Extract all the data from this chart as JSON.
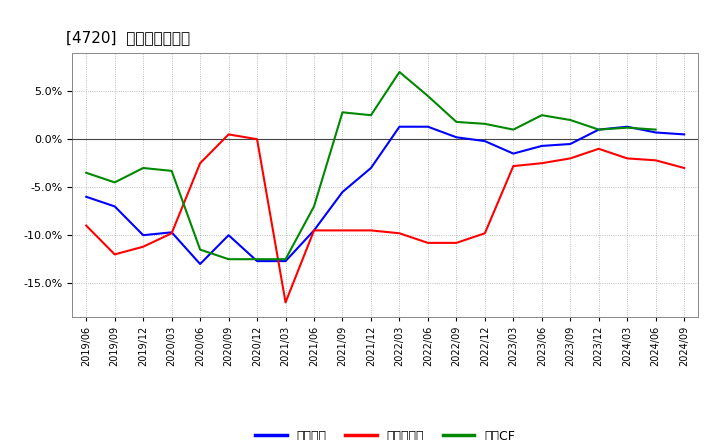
{
  "title": "[4720]  マージンの推移",
  "title_fontsize": 11,
  "background_color": "#ffffff",
  "plot_bg_color": "#ffffff",
  "grid_color": "#aaaaaa",
  "ylim": [
    -0.185,
    0.09
  ],
  "yticks": [
    -0.15,
    -0.1,
    -0.05,
    0.0,
    0.05
  ],
  "dates": [
    "2019/06",
    "2019/09",
    "2019/12",
    "2020/03",
    "2020/06",
    "2020/09",
    "2020/12",
    "2021/03",
    "2021/06",
    "2021/09",
    "2021/12",
    "2022/03",
    "2022/06",
    "2022/09",
    "2022/12",
    "2023/03",
    "2023/06",
    "2023/09",
    "2023/12",
    "2024/03",
    "2024/06",
    "2024/09"
  ],
  "keijo_rieki": [
    -0.06,
    -0.07,
    -0.1,
    -0.097,
    -0.13,
    -0.1,
    -0.127,
    -0.127,
    -0.095,
    -0.055,
    -0.03,
    0.013,
    0.013,
    0.002,
    -0.002,
    -0.015,
    -0.007,
    -0.005,
    0.01,
    0.013,
    0.007,
    0.005
  ],
  "touki_junrieki": [
    -0.09,
    -0.12,
    -0.112,
    -0.098,
    -0.025,
    0.005,
    0.0,
    -0.17,
    -0.095,
    -0.095,
    -0.095,
    -0.098,
    -0.108,
    -0.108,
    -0.098,
    -0.028,
    -0.025,
    -0.02,
    -0.01,
    -0.02,
    -0.022,
    -0.03
  ],
  "eigyo_cf": [
    -0.035,
    -0.045,
    -0.03,
    -0.033,
    -0.115,
    -0.125,
    -0.125,
    -0.125,
    -0.07,
    0.028,
    0.025,
    0.07,
    0.045,
    0.018,
    0.016,
    0.01,
    0.025,
    0.02,
    0.01,
    0.012,
    0.01,
    null
  ],
  "keijo_color": "#0000ff",
  "touki_color": "#ff0000",
  "eigyo_color": "#008800",
  "line_width": 1.5,
  "legend_labels": [
    "経常利益",
    "当期純利益",
    "営業CF"
  ]
}
